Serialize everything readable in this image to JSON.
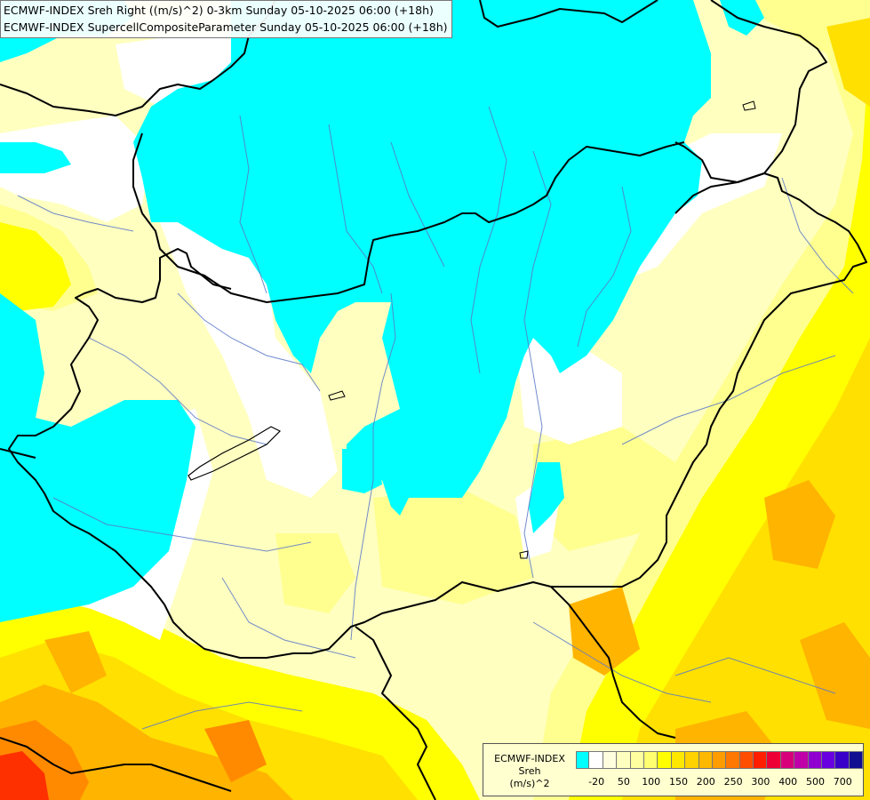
{
  "title_lines": [
    "ECMWF-INDEX Sreh Right ((m/s)^2) 0-3km Sunday 05-10-2025 06:00 (+18h)",
    "ECMWF-INDEX SupercellCompositeParameter Sunday 05-10-2025 06:00 (+18h)"
  ],
  "legend": {
    "title_lines": [
      "ECMWF-INDEX",
      "Sreh",
      "(m/s)^2"
    ],
    "colors": [
      "#00ffff",
      "#ffffff",
      "#ffffe0",
      "#ffffc0",
      "#ffffa0",
      "#ffff70",
      "#ffff00",
      "#ffe800",
      "#ffd200",
      "#ffb800",
      "#ff9c00",
      "#ff7800",
      "#ff4e00",
      "#ff1e00",
      "#ee0034",
      "#d8007a",
      "#c000a8",
      "#9000d0",
      "#6800e0",
      "#3800c8",
      "#101090"
    ],
    "tick_labels": [
      "-20",
      "50",
      "100",
      "150",
      "200",
      "250",
      "300",
      "400",
      "500",
      "700"
    ]
  },
  "map_colors": {
    "cyan": "#00ffff",
    "white": "#ffffff",
    "pale": "#ffffc0",
    "light_yellow": "#ffff90",
    "yellow": "#ffff00",
    "yellow_orange": "#ffe000",
    "orange": "#ffb400",
    "dark_orange": "#ff8a00",
    "red": "#ff3000",
    "border": "#000000",
    "river": "#5a78c8"
  }
}
